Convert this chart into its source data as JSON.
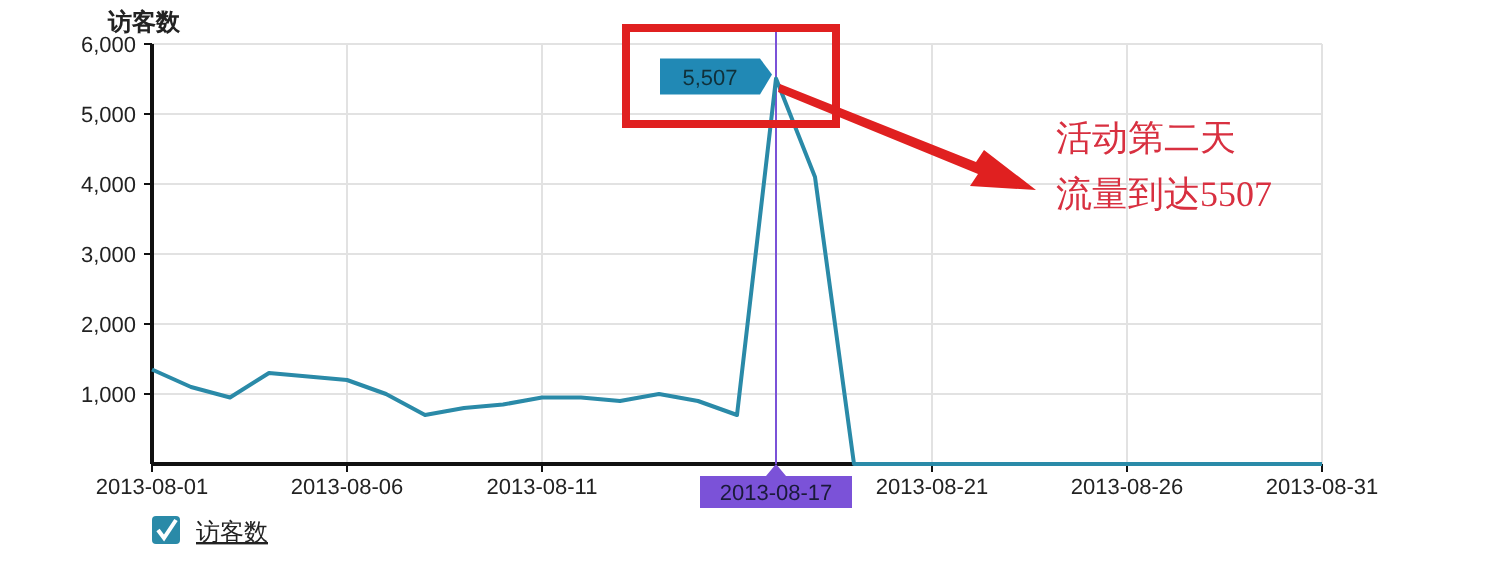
{
  "chart_data": {
    "type": "line",
    "ylabel": "访客数",
    "x": [
      "2013-08-01",
      "2013-08-02",
      "2013-08-03",
      "2013-08-04",
      "2013-08-05",
      "2013-08-06",
      "2013-08-07",
      "2013-08-08",
      "2013-08-09",
      "2013-08-10",
      "2013-08-11",
      "2013-08-12",
      "2013-08-13",
      "2013-08-14",
      "2013-08-15",
      "2013-08-16",
      "2013-08-17",
      "2013-08-18",
      "2013-08-19",
      "2013-08-20",
      "2013-08-21",
      "2013-08-22",
      "2013-08-23",
      "2013-08-24",
      "2013-08-25",
      "2013-08-26",
      "2013-08-27",
      "2013-08-28",
      "2013-08-29",
      "2013-08-30",
      "2013-08-31"
    ],
    "series": [
      {
        "name": "访客数",
        "color": "#2a8aa8",
        "values": [
          1350,
          1100,
          950,
          1300,
          1250,
          1200,
          1000,
          700,
          800,
          850,
          950,
          950,
          900,
          1000,
          900,
          700,
          5507,
          4100,
          0,
          0,
          0,
          0,
          0,
          0,
          0,
          0,
          0,
          0,
          0,
          0,
          0
        ],
        "value_labels": [
          null,
          null,
          null,
          null,
          null,
          null,
          null,
          null,
          null,
          null,
          null,
          null,
          null,
          null,
          null,
          null,
          "5,507",
          null,
          null,
          null,
          null,
          null,
          null,
          null,
          null,
          null,
          null,
          null,
          null,
          null,
          null
        ]
      }
    ],
    "xlim": [
      "2013-08-01",
      "2013-08-31"
    ],
    "xticks": [
      "2013-08-01",
      "2013-08-06",
      "2013-08-11",
      "2013-08-21",
      "2013-08-26",
      "2013-08-31"
    ],
    "ylim": [
      0,
      6000
    ],
    "yticks": [
      {
        "value": 1000,
        "label": "1,000"
      },
      {
        "value": 2000,
        "label": "2,000"
      },
      {
        "value": 3000,
        "label": "3,000"
      },
      {
        "value": 4000,
        "label": "4,000"
      },
      {
        "value": 5000,
        "label": "5,000"
      },
      {
        "value": 6000,
        "label": "6,000"
      }
    ],
    "ref_lines": [
      {
        "axis": "x",
        "value": "2013-08-17",
        "label": "2013-08-17",
        "color": "#7b52d8"
      }
    ],
    "annotations": [
      "活动第二天流量到达5507"
    ],
    "grid": true,
    "legend": "bottom left",
    "marker": "none",
    "line_style": "solid"
  }
}
